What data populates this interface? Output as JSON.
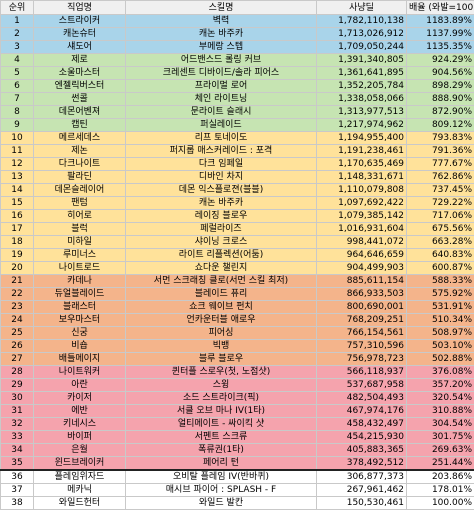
{
  "headers": {
    "rank": "순위",
    "job": "직업명",
    "skill": "스킬명",
    "damage": "사냥딜",
    "ratio": "배율 (와발=100)"
  },
  "band_colors": {
    "blue": "#a9d4ea",
    "green": "#c6e4b2",
    "yellow": "#ffe29a",
    "orange": "#f4b48b",
    "red": "#f5a3ad",
    "white": "#ffffff"
  },
  "rows": [
    {
      "rank": "1",
      "job": "스트라이커",
      "skill": "벽력",
      "damage": "1,782,110,138",
      "ratio": "1183.89%",
      "band": "blue"
    },
    {
      "rank": "2",
      "job": "캐논슈터",
      "skill": "캐논 바주카",
      "damage": "1,713,026,912",
      "ratio": "1137.99%",
      "band": "blue"
    },
    {
      "rank": "3",
      "job": "섀도어",
      "skill": "부메랑 스텝",
      "damage": "1,709,050,244",
      "ratio": "1135.35%",
      "band": "blue"
    },
    {
      "rank": "4",
      "job": "제로",
      "skill": "어드밴스드 롤링 커브",
      "damage": "1,391,340,805",
      "ratio": "924.29%",
      "band": "green"
    },
    {
      "rank": "5",
      "job": "소울마스터",
      "skill": "크레센트 디바이드/솔라 피어스",
      "damage": "1,361,641,895",
      "ratio": "904.56%",
      "band": "green"
    },
    {
      "rank": "6",
      "job": "엔젤릭버스터",
      "skill": "프라이멀 로어",
      "damage": "1,352,205,784",
      "ratio": "898.29%",
      "band": "green"
    },
    {
      "rank": "7",
      "job": "썬콜",
      "skill": "체인 라이트닝",
      "damage": "1,338,058,066",
      "ratio": "888.90%",
      "band": "green"
    },
    {
      "rank": "8",
      "job": "데몬어벤져",
      "skill": "문라이트 슬래시",
      "damage": "1,313,977,513",
      "ratio": "872.90%",
      "band": "green"
    },
    {
      "rank": "9",
      "job": "캡틴",
      "skill": "퍼실레이드",
      "damage": "1,217,974,962",
      "ratio": "809.12%",
      "band": "green"
    },
    {
      "rank": "10",
      "job": "메르세데스",
      "skill": "리프 토네이도",
      "damage": "1,194,955,400",
      "ratio": "793.83%",
      "band": "yellow"
    },
    {
      "rank": "11",
      "job": "제논",
      "skill": "퍼지롭 매스커레이드 : 포격",
      "damage": "1,191,238,461",
      "ratio": "791.36%",
      "band": "yellow"
    },
    {
      "rank": "12",
      "job": "다크나이트",
      "skill": "다크 임페일",
      "damage": "1,170,635,469",
      "ratio": "777.67%",
      "band": "yellow"
    },
    {
      "rank": "13",
      "job": "팔라딘",
      "skill": "디바인 차지",
      "damage": "1,148,331,671",
      "ratio": "762.86%",
      "band": "yellow"
    },
    {
      "rank": "14",
      "job": "데몬슬레이어",
      "skill": "데몬 익스플로젼(블블)",
      "damage": "1,110,079,808",
      "ratio": "737.45%",
      "band": "yellow"
    },
    {
      "rank": "15",
      "job": "팬텀",
      "skill": "캐논 바주카",
      "damage": "1,097,692,422",
      "ratio": "729.22%",
      "band": "yellow"
    },
    {
      "rank": "16",
      "job": "히어로",
      "skill": "레이징 블로우",
      "damage": "1,079,385,142",
      "ratio": "717.06%",
      "band": "yellow"
    },
    {
      "rank": "17",
      "job": "블럭",
      "skill": "페럴라이즈",
      "damage": "1,016,931,604",
      "ratio": "675.56%",
      "band": "yellow"
    },
    {
      "rank": "18",
      "job": "미하일",
      "skill": "샤이닝 크로스",
      "damage": "998,441,072",
      "ratio": "663.28%",
      "band": "yellow"
    },
    {
      "rank": "19",
      "job": "루미너스",
      "skill": "라이트 리플렉션(어둠)",
      "damage": "964,646,659",
      "ratio": "640.83%",
      "band": "yellow"
    },
    {
      "rank": "20",
      "job": "나이트로드",
      "skill": "쇼다운 챌린지",
      "damage": "904,499,903",
      "ratio": "600.87%",
      "band": "yellow"
    },
    {
      "rank": "21",
      "job": "카데나",
      "skill": "서먼 스크래칭 클로(서먼 스킬 최저)",
      "damage": "885,611,154",
      "ratio": "588.33%",
      "band": "orange"
    },
    {
      "rank": "22",
      "job": "듀얼블레이드",
      "skill": "블레이드 퓨리",
      "damage": "866,933,503",
      "ratio": "575.92%",
      "band": "orange"
    },
    {
      "rank": "23",
      "job": "블래스터",
      "skill": "쇼크 웨이브 펀치",
      "damage": "800,690,001",
      "ratio": "531.91%",
      "band": "orange"
    },
    {
      "rank": "24",
      "job": "보우마스터",
      "skill": "언카운터블 애로우",
      "damage": "768,209,251",
      "ratio": "510.34%",
      "band": "orange"
    },
    {
      "rank": "25",
      "job": "신궁",
      "skill": "피어싱",
      "damage": "766,154,561",
      "ratio": "508.97%",
      "band": "orange"
    },
    {
      "rank": "26",
      "job": "비숍",
      "skill": "빅뱅",
      "damage": "757,310,596",
      "ratio": "503.10%",
      "band": "orange"
    },
    {
      "rank": "27",
      "job": "배틀메이지",
      "skill": "블루 블로우",
      "damage": "756,978,723",
      "ratio": "502.88%",
      "band": "orange"
    },
    {
      "rank": "28",
      "job": "나이트워커",
      "skill": "퀸터플 스로우(첫, 노점샷)",
      "damage": "566,118,937",
      "ratio": "376.08%",
      "band": "red"
    },
    {
      "rank": "29",
      "job": "아란",
      "skill": "스윙",
      "damage": "537,687,958",
      "ratio": "357.20%",
      "band": "red"
    },
    {
      "rank": "30",
      "job": "카이저",
      "skill": "소드 스트라이크(픽)",
      "damage": "482,504,493",
      "ratio": "320.54%",
      "band": "red"
    },
    {
      "rank": "31",
      "job": "에반",
      "skill": "서클 오브 마나 IV(1타)",
      "damage": "467,974,176",
      "ratio": "310.88%",
      "band": "red"
    },
    {
      "rank": "32",
      "job": "키네시스",
      "skill": "얼티메이트 - 싸이킥 샷",
      "damage": "458,432,497",
      "ratio": "304.54%",
      "band": "red"
    },
    {
      "rank": "33",
      "job": "바이퍼",
      "skill": "서펜트 스크류",
      "damage": "454,215,930",
      "ratio": "301.75%",
      "band": "red"
    },
    {
      "rank": "34",
      "job": "은월",
      "skill": "폭류권(1타)",
      "damage": "405,883,365",
      "ratio": "269.63%",
      "band": "red"
    },
    {
      "rank": "35",
      "job": "윈드브레이커",
      "skill": "페어리 턴",
      "damage": "378,492,512",
      "ratio": "251.44%",
      "band": "red"
    },
    {
      "rank": "36",
      "job": "플레임위자드",
      "skill": "오비탈 플레임 IV(반바퀴)",
      "damage": "306,877,373",
      "ratio": "203.86%",
      "band": "white"
    },
    {
      "rank": "37",
      "job": "메카닉",
      "skill": "매시브 파이어 : SPLASH - F",
      "damage": "267,961,462",
      "ratio": "178.01%",
      "band": "white"
    },
    {
      "rank": "38",
      "job": "와일드헌터",
      "skill": "와일드 발칸",
      "damage": "150,530,461",
      "ratio": "100.00%",
      "band": "white"
    }
  ]
}
